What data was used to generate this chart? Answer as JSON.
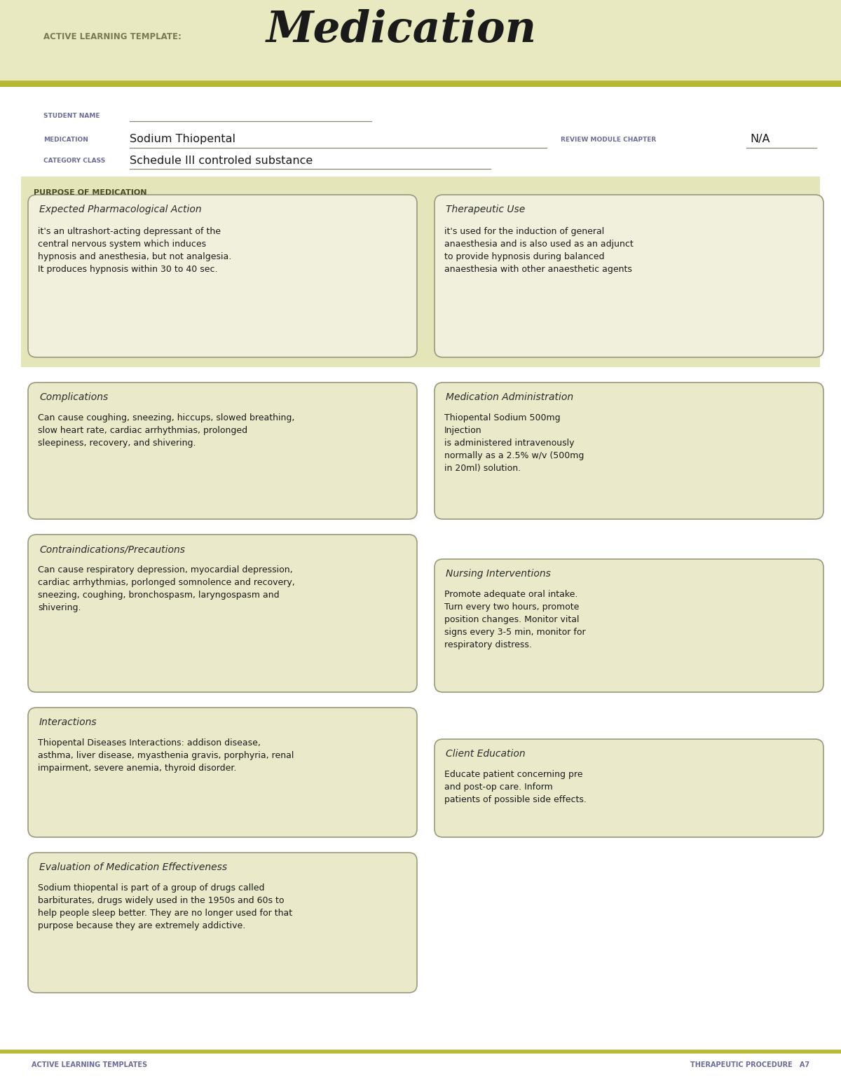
{
  "white": "#ffffff",
  "header_bg": "#e8e9c0",
  "green_bar": "#b5b832",
  "box_bg_light": "#eaeacb",
  "box_bg_med": "#e4e4b8",
  "box_border": "#999980",
  "purpose_bg": "#e4e5b8",
  "title_color": "#1a1a1a",
  "label_color": "#6b6b9a",
  "body_color": "#1a1a1a",
  "header_text_color": "#7a7a50",
  "purpose_text_color": "#4a4a28",
  "header_title_small": "ACTIVE LEARNING TEMPLATE:",
  "header_title_large": "Medication",
  "student_name_label": "STUDENT NAME",
  "medication_label": "MEDICATION",
  "medication_value": "Sodium Thiopental",
  "review_label": "REVIEW MODULE CHAPTER",
  "review_value": "N/A",
  "category_label": "CATEGORY CLASS",
  "category_value": "Schedule III controled substance",
  "purpose_label": "PURPOSE OF MEDICATION",
  "box1_title": "Expected Pharmacological Action",
  "box1_body": "it's an ultrashort-acting depressant of the\ncentral nervous system which induces\nhypnosis and anesthesia, but not analgesia.\nIt produces hypnosis within 30 to 40 sec.",
  "box2_title": "Therapeutic Use",
  "box2_body": "it's used for the induction of general\nanaesthesia and is also used as an adjunct\nto provide hypnosis during balanced\nanaesthesia with other anaesthetic agents",
  "box3_title": "Complications",
  "box3_body": "Can cause coughing, sneezing, hiccups, slowed breathing,\nslow heart rate, cardiac arrhythmias, prolonged\nsleepiness, recovery, and shivering.",
  "box4_title": "Medication Administration",
  "box4_body": "Thiopental Sodium 500mg\nInjection\nis administered intravenously\nnormally as a 2.5% w/v (500mg\nin 20ml) solution.",
  "box5_title": "Contraindications/Precautions",
  "box5_body": "Can cause respiratory depression, myocardial depression,\ncardiac arrhythmias, porlonged somnolence and recovery,\nsneezing, coughing, bronchospasm, laryngospasm and\nshivering.",
  "box6_title": "Nursing Interventions",
  "box6_body": "Promote adequate oral intake.\nTurn every two hours, promote\nposition changes. Monitor vital\nsigns every 3-5 min, monitor for\nrespiratory distress.",
  "box7_title": "Interactions",
  "box7_body": "Thiopental Diseases Interactions: addison disease,\nasthma, liver disease, myasthenia gravis, porphyria, renal\nimpairment, severe anemia, thyroid disorder.",
  "box8_title": "Client Education",
  "box8_body": "Educate patient concerning pre\nand post-op care. Inform\npatients of possible side effects.",
  "box9_title": "Evaluation of Medication Effectiveness",
  "box9_body": "Sodium thiopental is part of a group of drugs called\nbarbiturates, drugs widely used in the 1950s and 60s to\nhelp people sleep better. They are no longer used for that\npurpose because they are extremely addictive.",
  "footer_left": "ACTIVE LEARNING TEMPLATES",
  "footer_right": "THERAPEUTIC PROCEDURE   A7"
}
